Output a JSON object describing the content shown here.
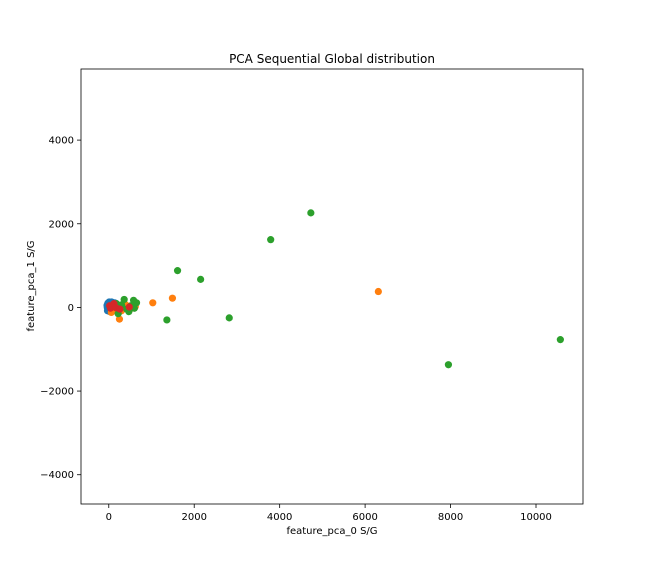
{
  "chart_data": {
    "type": "scatter",
    "title": "PCA Sequential Global distribution",
    "xlabel": "feature_pca_0 S/G",
    "ylabel": "feature_pca_1 S/G",
    "xlim": [
      -650,
      11100
    ],
    "ylim": [
      -4700,
      5700
    ],
    "xticks": [
      0,
      2000,
      4000,
      6000,
      8000,
      10000
    ],
    "yticks": [
      -4000,
      -2000,
      0,
      2000,
      4000
    ],
    "xtick_labels": [
      "0",
      "2000",
      "4000",
      "6000",
      "8000",
      "10000"
    ],
    "ytick_labels": [
      "−4000",
      "−2000",
      "0",
      "2000",
      "4000"
    ],
    "grid": false,
    "legend": "none",
    "series": [
      {
        "color": "#1f77b4",
        "points": [
          [
            -40,
            50
          ],
          [
            -20,
            100
          ],
          [
            0,
            20
          ],
          [
            20,
            -60
          ],
          [
            40,
            80
          ],
          [
            60,
            0
          ],
          [
            80,
            120
          ],
          [
            100,
            -40
          ],
          [
            120,
            60
          ],
          [
            140,
            110
          ],
          [
            -30,
            -80
          ],
          [
            10,
            130
          ],
          [
            50,
            -20
          ],
          [
            90,
            40
          ],
          [
            130,
            -10
          ],
          [
            70,
            90
          ],
          [
            30,
            30
          ],
          [
            -10,
            -30
          ],
          [
            110,
            100
          ],
          [
            150,
            20
          ],
          [
            -35,
            0
          ],
          [
            25,
            -100
          ],
          [
            65,
            130
          ]
        ]
      },
      {
        "color": "#ff7f0e",
        "points": [
          [
            60,
            -120
          ],
          [
            120,
            -60
          ],
          [
            250,
            -280
          ],
          [
            300,
            -80
          ],
          [
            400,
            60
          ],
          [
            500,
            -40
          ],
          [
            620,
            20
          ],
          [
            1030,
            110
          ],
          [
            1490,
            220
          ],
          [
            6310,
            380
          ]
        ]
      },
      {
        "color": "#2ca02c",
        "points": [
          [
            180,
            90
          ],
          [
            220,
            -150
          ],
          [
            300,
            60
          ],
          [
            360,
            190
          ],
          [
            420,
            -40
          ],
          [
            470,
            -100
          ],
          [
            520,
            40
          ],
          [
            580,
            170
          ],
          [
            650,
            110
          ],
          [
            600,
            -20
          ],
          [
            1360,
            -300
          ],
          [
            1610,
            880
          ],
          [
            2150,
            670
          ],
          [
            2820,
            -250
          ],
          [
            3790,
            1620
          ],
          [
            4730,
            2260
          ],
          [
            7950,
            -1370
          ],
          [
            10570,
            -770
          ]
        ]
      },
      {
        "color": "#d62728",
        "points": [
          [
            20,
            40
          ],
          [
            40,
            -20
          ],
          [
            80,
            20
          ],
          [
            120,
            90
          ],
          [
            170,
            -10
          ],
          [
            260,
            -40
          ],
          [
            480,
            10
          ]
        ]
      }
    ]
  }
}
